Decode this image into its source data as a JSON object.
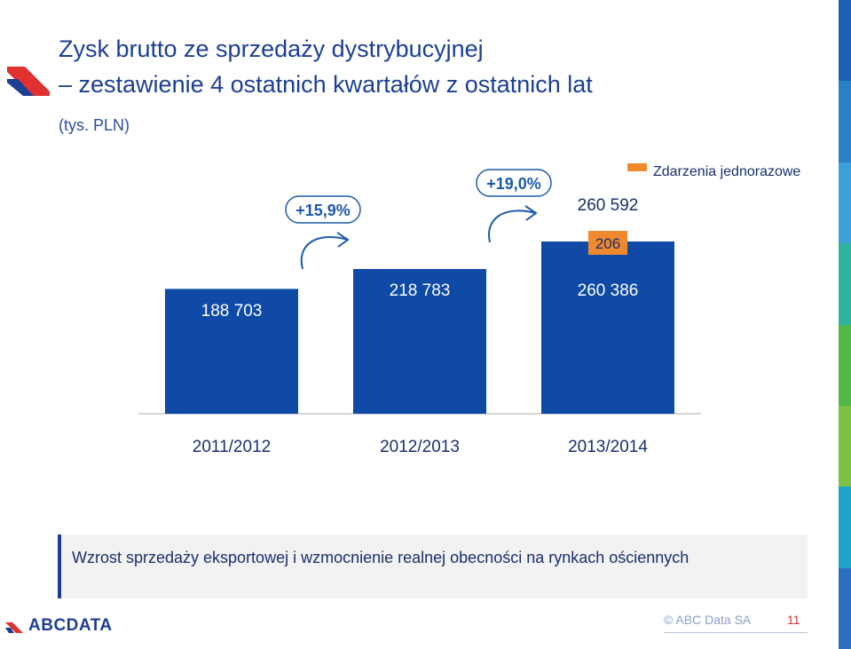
{
  "title": {
    "line1": "Zysk brutto ze sprzedaży dystrybucyjnej",
    "line2": "– zestawienie 4 ostatnich kwartałów z ostatnich lat"
  },
  "subtitle": "(tys. PLN)",
  "chart_data": {
    "type": "bar",
    "categories": [
      "2011/2012",
      "2012/2013",
      "2013/2014"
    ],
    "values": [
      188703,
      218783,
      260386
    ],
    "value_labels": [
      "188 703",
      "218 783",
      "260 386"
    ],
    "one_off": {
      "legend_label": "Zdarzenia jednorazowe",
      "category": "2013/2014",
      "value": 206,
      "label": "206",
      "color": "#f0892e"
    },
    "totals": [
      {
        "category": "2013/2014",
        "label": "260 592"
      }
    ],
    "growth": [
      {
        "from": "2011/2012",
        "to": "2012/2013",
        "label": "+15,9%"
      },
      {
        "from": "2012/2013",
        "to": "2013/2014",
        "label": "+19,0%"
      }
    ],
    "bar_color": "#0e4aa6",
    "legend_position": "top-right",
    "grid": false
  },
  "info_text": "Wzrost sprzedaży eksportowej i wzmocnienie realnej obecności na rynkach ościennych",
  "footer": {
    "logo": "ABCDATA",
    "copyright": "© ABC Data SA",
    "page_number": "11"
  },
  "colors": {
    "brand_blue": "#1c3f94",
    "accent_red": "#e03030",
    "stripe": [
      "#1d5fb5",
      "#2a7fc6",
      "#3b9fd8",
      "#2fb1a0",
      "#52b848",
      "#7cc144",
      "#1fa3c9",
      "#2d6fbf"
    ]
  }
}
